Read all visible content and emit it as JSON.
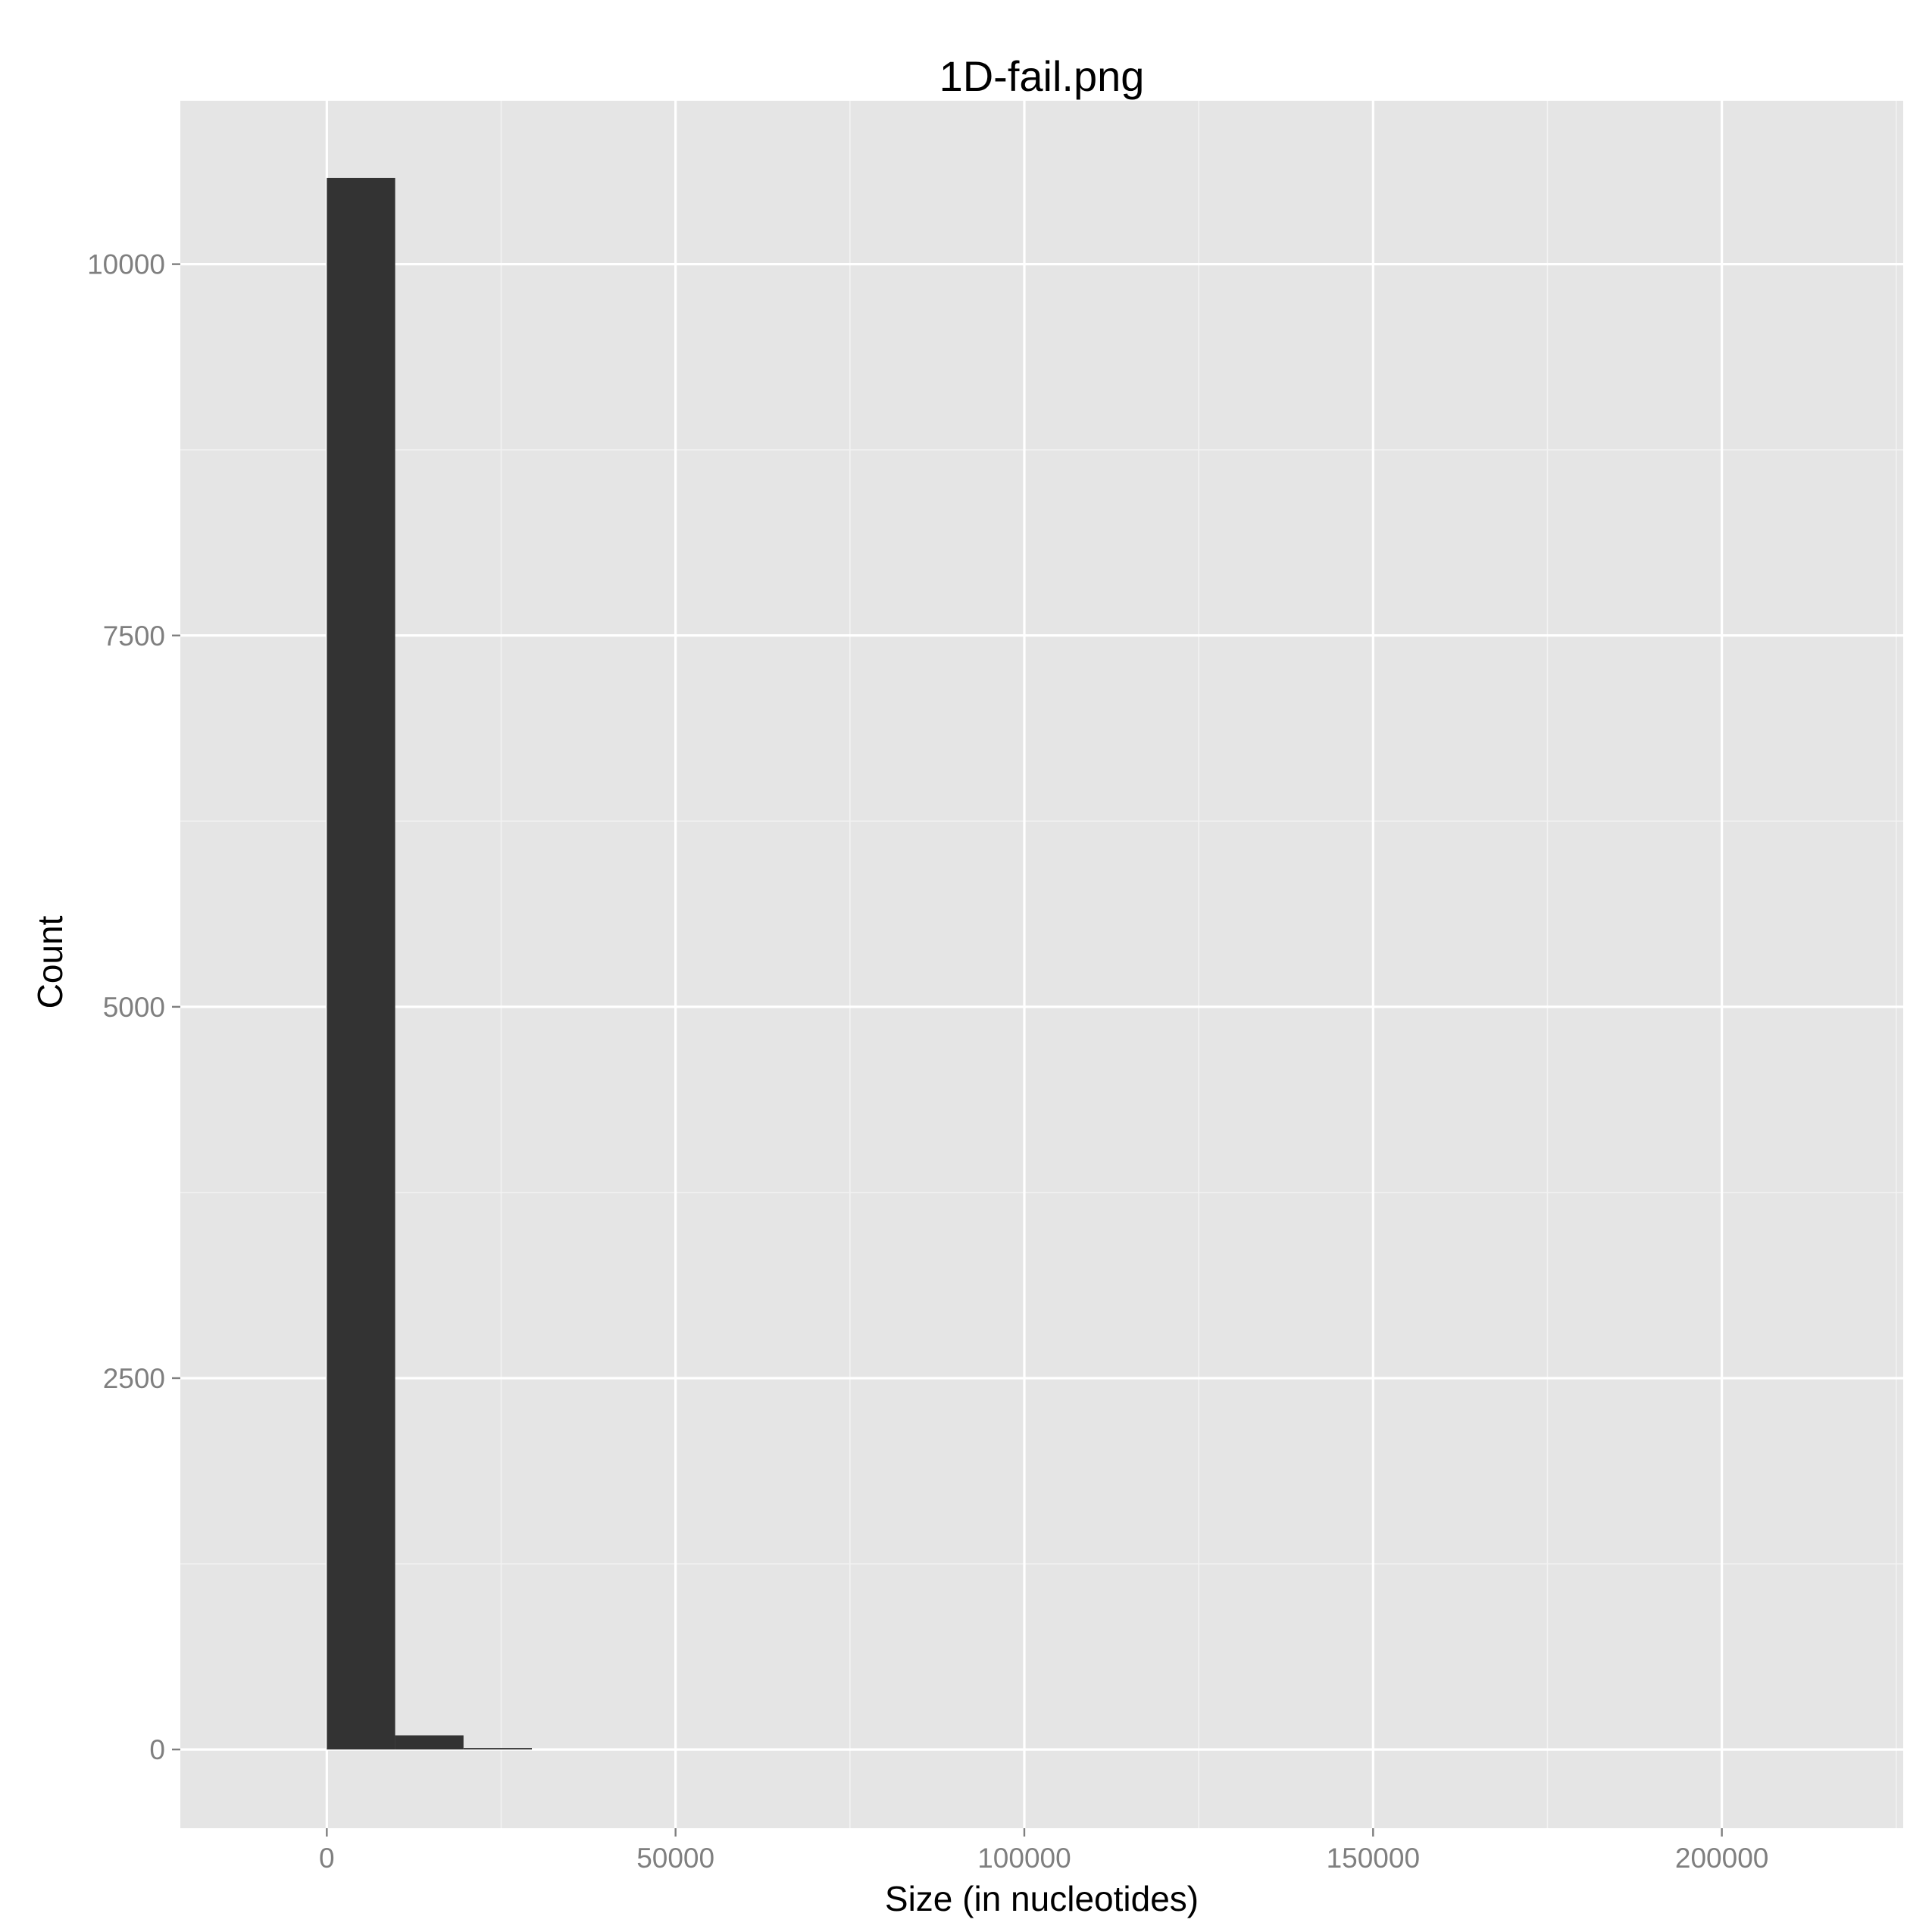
{
  "chart_data": {
    "type": "bar",
    "title": "1D-fail.png",
    "xlabel": "Size (in nucleotides)",
    "ylabel": "Count",
    "xlim": [
      -21000,
      226000
    ],
    "ylim": [
      -530,
      11100
    ],
    "x_ticks": [
      0,
      50000,
      100000,
      150000,
      200000
    ],
    "x_tick_labels": [
      "0",
      "50000",
      "100000",
      "150000",
      "200000"
    ],
    "x_minor_ticks": [
      -25000,
      25000,
      75000,
      125000,
      175000,
      225000
    ],
    "y_ticks": [
      0,
      2500,
      5000,
      7500,
      10000
    ],
    "y_tick_labels": [
      "0",
      "2500",
      "5000",
      "7500",
      "10000"
    ],
    "y_minor_ticks": [
      1250,
      3750,
      6250,
      8750
    ],
    "bin_width": 9800,
    "bins": [
      {
        "start": 0,
        "end": 9800,
        "count": 10580
      },
      {
        "start": 9800,
        "end": 19600,
        "count": 95
      },
      {
        "start": 19600,
        "end": 29400,
        "count": 10
      }
    ],
    "grid": true,
    "colors": {
      "panel_background": "#e5e5e5",
      "grid_major": "#ffffff",
      "grid_minor": "#f2f2f2",
      "bar_fill": "#333333",
      "tick_mark": "#7f7f7f"
    }
  }
}
